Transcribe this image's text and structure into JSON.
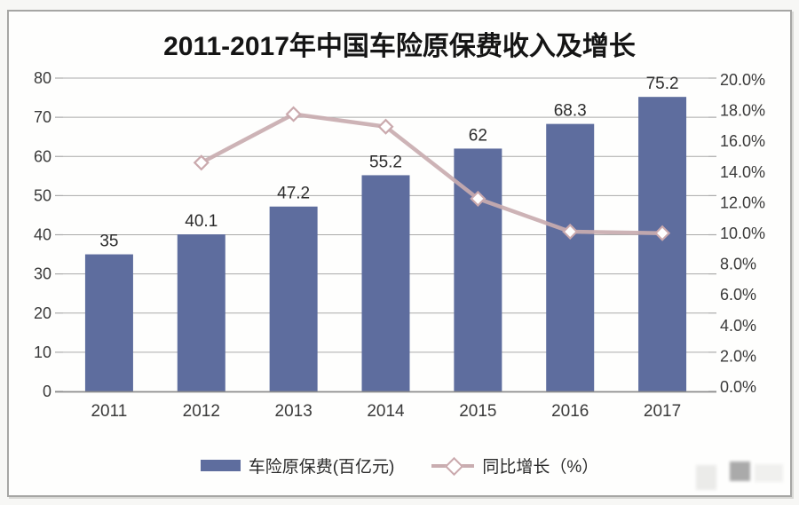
{
  "title": "2011-2017年中国车险原保费收入及增长",
  "colors": {
    "bar": "#5e6d9e",
    "line": "#c9adb0",
    "marker_fill": "#ffffff",
    "marker_stroke": "#caa9ad",
    "grid": "#aaaaaa",
    "axis": "#8d8d8d",
    "tick_text": "#3a3a3a",
    "value_text": "#2c2c2c"
  },
  "chart_data": {
    "type": "bar",
    "subtype": "combo-bar-line-dual-axis",
    "title": "2011-2017年中国车险原保费收入及增长",
    "categories": [
      "2011",
      "2012",
      "2013",
      "2014",
      "2015",
      "2016",
      "2017"
    ],
    "series": [
      {
        "name": "车险原保费(百亿元)",
        "type": "bar",
        "axis": "left",
        "values": [
          35,
          40.1,
          47.2,
          55.2,
          62,
          68.3,
          75.2
        ],
        "value_labels": [
          "35",
          "40.1",
          "47.2",
          "55.2",
          "62",
          "68.3",
          "75.2"
        ]
      },
      {
        "name": "同比增长（%）",
        "type": "line",
        "axis": "right",
        "marker": "diamond",
        "values": [
          null,
          14.6,
          17.7,
          16.9,
          12.3,
          10.2,
          10.1
        ]
      }
    ],
    "left_axis": {
      "min": 0,
      "max": 80,
      "tick_labels": [
        "0",
        "10",
        "20",
        "30",
        "40",
        "50",
        "60",
        "70",
        "80"
      ]
    },
    "right_axis": {
      "min": 0,
      "max": 20,
      "tick_labels": [
        "0.0%",
        "2.0%",
        "4.0%",
        "6.0%",
        "8.0%",
        "10.0%",
        "12.0%",
        "14.0%",
        "16.0%",
        "18.0%",
        "20.0%"
      ]
    },
    "grid": true,
    "legend_position": "bottom"
  }
}
